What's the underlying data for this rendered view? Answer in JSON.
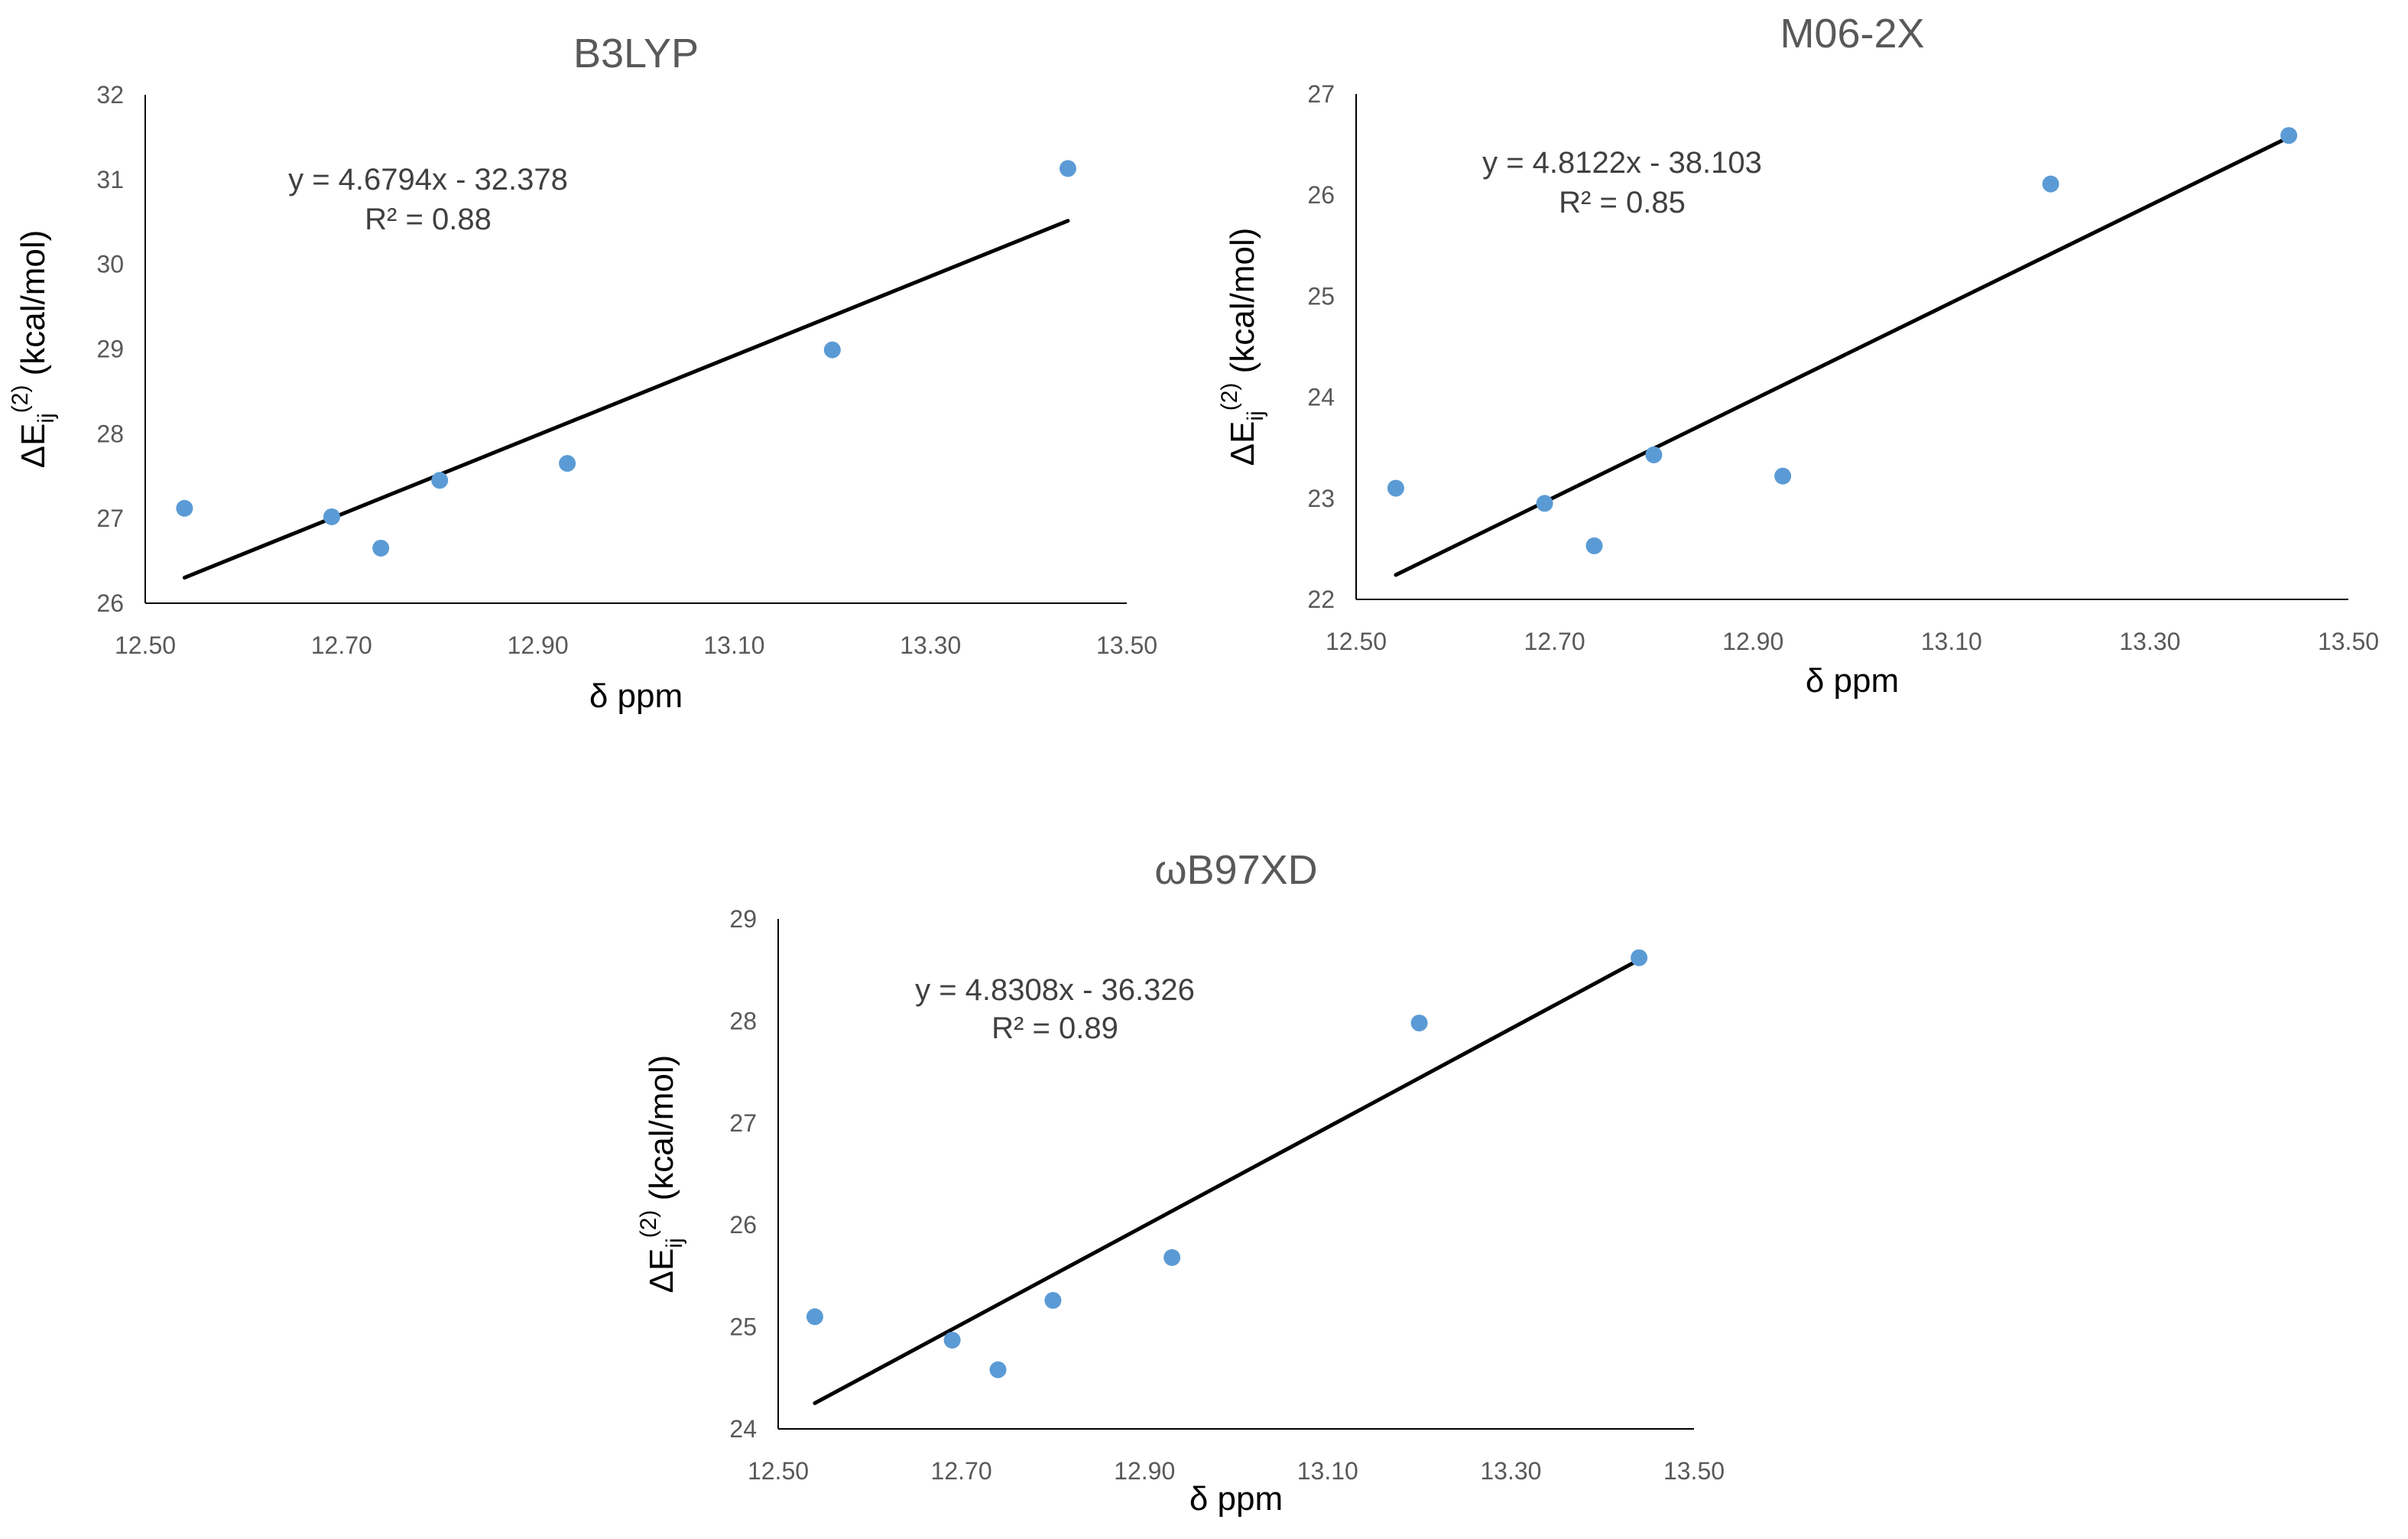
{
  "colors": {
    "point": "#5b9bd5",
    "trendline": "#000000",
    "axis": "#000000",
    "tick_text": "#595959",
    "title_text": "#595959",
    "equation_text": "#404040"
  },
  "chart_data": [
    {
      "type": "scatter",
      "title": "B3LYP",
      "xlabel": "δ ppm",
      "ylabel": "ΔE_ij^(2) (kcal/mol)",
      "ylabel_parts": {
        "delta_e": "ΔE",
        "subscript": "ij",
        "superscript": "(2)",
        "unit": "(kcal/mol)"
      },
      "xlim": [
        12.5,
        13.5
      ],
      "ylim": [
        26,
        32
      ],
      "x_ticks": [
        "12.50",
        "12.70",
        "12.90",
        "13.10",
        "13.30",
        "13.50"
      ],
      "y_ticks": [
        "26",
        "27",
        "28",
        "29",
        "30",
        "31",
        "32"
      ],
      "points": {
        "x": [
          12.54,
          12.69,
          12.74,
          12.8,
          12.93,
          13.2,
          13.44
        ],
        "y": [
          27.12,
          27.02,
          26.65,
          27.45,
          27.65,
          28.99,
          31.13
        ]
      },
      "trendline": {
        "slope": 4.6794,
        "intercept": -32.378,
        "x_range": [
          12.54,
          13.44
        ]
      },
      "equation": "y = 4.6794x - 32.378",
      "r2": "R² = 0.88"
    },
    {
      "type": "scatter",
      "title": "M06-2X",
      "xlabel": "δ ppm",
      "ylabel": "ΔE_ij^(2) (kcal/mol)",
      "ylabel_parts": {
        "delta_e": "ΔE",
        "subscript": "ij",
        "superscript": "(2)",
        "unit": "(kcal/mol)"
      },
      "xlim": [
        12.5,
        13.5
      ],
      "ylim": [
        22,
        27
      ],
      "x_ticks": [
        "12.50",
        "12.70",
        "12.90",
        "13.10",
        "13.30",
        "13.50"
      ],
      "y_ticks": [
        "22",
        "23",
        "24",
        "25",
        "26",
        "27"
      ],
      "points": {
        "x": [
          12.54,
          12.69,
          12.74,
          12.8,
          12.93,
          13.2,
          13.44
        ],
        "y": [
          23.1,
          22.95,
          22.53,
          23.43,
          23.22,
          26.11,
          26.59
        ]
      },
      "trendline": {
        "slope": 4.8122,
        "intercept": -38.103,
        "x_range": [
          12.54,
          13.44
        ]
      },
      "equation": "y = 4.8122x - 38.103",
      "r2": "R² = 0.85"
    },
    {
      "type": "scatter",
      "title": "ωB97XD",
      "xlabel": "δ ppm",
      "ylabel": "ΔE_ij^(2) (kcal/mol)",
      "ylabel_parts": {
        "delta_e": "ΔE",
        "subscript": "ij",
        "superscript": "(2)",
        "unit": "(kcal/mol)"
      },
      "xlim": [
        12.5,
        13.5
      ],
      "ylim": [
        24,
        29
      ],
      "x_ticks": [
        "12.50",
        "12.70",
        "12.90",
        "13.10",
        "13.30",
        "13.50"
      ],
      "y_ticks": [
        "24",
        "25",
        "26",
        "27",
        "28",
        "29"
      ],
      "points": {
        "x": [
          12.54,
          12.69,
          12.74,
          12.8,
          12.93,
          13.2,
          13.44
        ],
        "y": [
          25.1,
          24.87,
          24.58,
          25.26,
          25.68,
          27.98,
          28.62
        ]
      },
      "trendline": {
        "slope": 4.8308,
        "intercept": -36.326,
        "x_range": [
          12.54,
          13.44
        ]
      },
      "equation": "y = 4.8308x - 36.326",
      "r2": "R² = 0.89"
    }
  ]
}
